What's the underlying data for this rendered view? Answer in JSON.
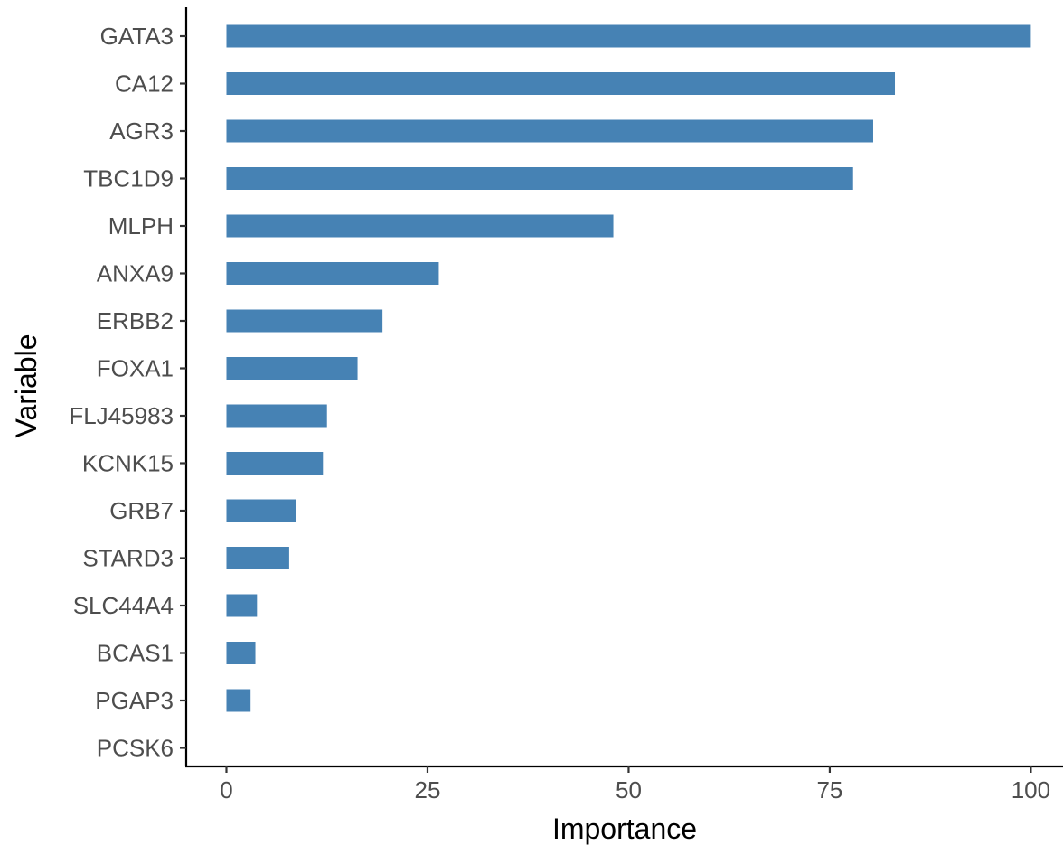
{
  "chart_data": {
    "type": "bar",
    "orientation": "horizontal",
    "categories": [
      "GATA3",
      "CA12",
      "AGR3",
      "TBC1D9",
      "MLPH",
      "ANXA9",
      "ERBB2",
      "FOXA1",
      "FLJ45983",
      "KCNK15",
      "GRB7",
      "STARD3",
      "SLC44A4",
      "BCAS1",
      "PGAP3",
      "PCSK6"
    ],
    "values": [
      100,
      83.1,
      80.4,
      77.9,
      48.1,
      26.4,
      19.4,
      16.3,
      12.5,
      12.0,
      8.6,
      7.8,
      3.8,
      3.6,
      3.0,
      0
    ],
    "xlabel": "Importance",
    "ylabel": "Variable",
    "xlim": [
      -5,
      104
    ],
    "xticks": [
      0,
      25,
      50,
      75,
      100
    ],
    "grid": false,
    "bar_color": "#4682b4"
  }
}
